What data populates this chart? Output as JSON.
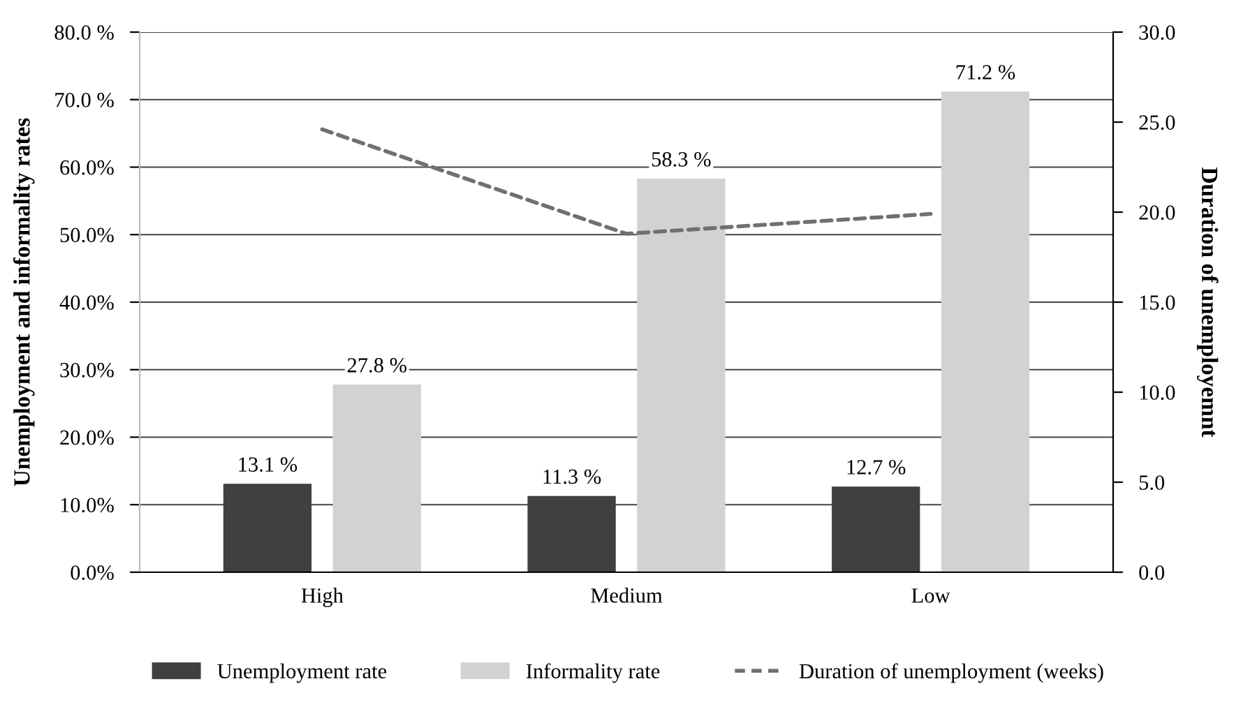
{
  "chart_data": {
    "type": "bar",
    "categories": [
      "High",
      "Medium",
      "Low"
    ],
    "ylabel": "Unemployment and informality rates",
    "y2label": "Duration of unemployemnt",
    "series": [
      {
        "name": "Unemployment rate",
        "color": "#404040",
        "values": [
          13.1,
          11.3,
          12.7
        ],
        "value_labels": [
          "13.1 %",
          "11.3 %",
          "12.7 %"
        ]
      },
      {
        "name": "Informality rate",
        "color": "#d1d2d4",
        "values": [
          27.8,
          58.3,
          71.2
        ],
        "value_labels": [
          "27.8 %",
          "58.3 %",
          "71.2 %"
        ]
      },
      {
        "name": "Duration of unemployment (weeks)",
        "type": "line",
        "axis": "y2",
        "color": "#707070",
        "line_style": "dashed",
        "marker": "none",
        "values": [
          24.6,
          18.8,
          19.9
        ]
      }
    ],
    "ylim": [
      0,
      80
    ],
    "yticks": [
      {
        "value": 0,
        "label": "0.0%"
      },
      {
        "value": 10,
        "label": "10.0%"
      },
      {
        "value": 20,
        "label": "20.0%"
      },
      {
        "value": 30,
        "label": "30.0%"
      },
      {
        "value": 40,
        "label": "40.0%"
      },
      {
        "value": 50,
        "label": "50.0%"
      },
      {
        "value": 60,
        "label": "60.0%"
      },
      {
        "value": 70,
        "label": "70.0 %"
      },
      {
        "value": 80,
        "label": "80.0 %"
      }
    ],
    "y2lim": [
      0,
      30
    ],
    "y2ticks": [
      {
        "value": 0,
        "label": "0.0"
      },
      {
        "value": 5,
        "label": "5.0"
      },
      {
        "value": 10,
        "label": "10.0"
      },
      {
        "value": 15,
        "label": "15.0"
      },
      {
        "value": 20,
        "label": "20.0"
      },
      {
        "value": 25,
        "label": "25.0"
      },
      {
        "value": 30,
        "label": "30.0"
      }
    ],
    "grid": "y",
    "legend": "bottom"
  }
}
